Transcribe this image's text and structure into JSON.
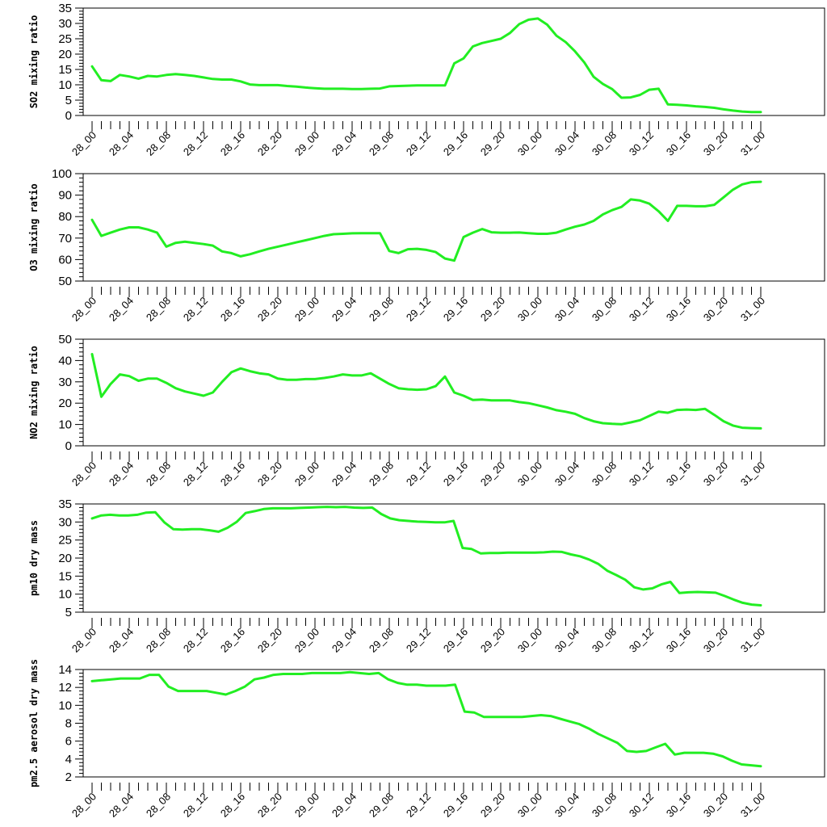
{
  "chart_data": [
    {
      "type": "line",
      "ylabel": "SO2 mixing ratio",
      "ylim": [
        0,
        35
      ],
      "ytick_labels": [
        "0",
        "5",
        "10",
        "15",
        "20",
        "25",
        "30",
        "35"
      ],
      "xtick_labels": [
        "28_00",
        "28_04",
        "28_08",
        "28_12",
        "28_16",
        "28_20",
        "29_00",
        "29_04",
        "29_08",
        "29_12",
        "29_16",
        "29_20",
        "30_00",
        "30_04",
        "30_08",
        "30_12",
        "30_16",
        "30_20",
        "31_00"
      ],
      "series_color": "#22ee22",
      "series": [
        {
          "values": [
            16.0,
            11.5,
            11.2,
            13.2,
            12.7,
            12.0,
            12.9,
            12.7,
            13.2,
            13.5,
            13.2,
            12.9,
            12.4,
            11.9,
            11.7,
            11.7,
            11.1,
            10.1,
            9.9,
            9.9,
            9.9,
            9.6,
            9.4,
            9.1,
            8.9,
            8.7,
            8.7,
            8.7,
            8.6,
            8.6,
            8.7,
            8.8,
            9.5,
            9.6,
            9.7,
            9.8,
            9.8,
            9.8,
            9.8,
            17.0,
            18.6,
            22.5,
            23.6,
            24.3,
            25.0,
            26.9,
            29.8,
            31.2,
            31.6,
            29.6,
            26.0,
            23.9,
            20.9,
            17.3,
            12.6,
            10.3,
            8.6,
            5.8,
            5.9,
            6.7,
            8.4,
            8.7,
            3.6,
            3.5,
            3.3,
            3.0,
            2.8,
            2.5,
            2.0,
            1.6,
            1.3,
            1.1,
            1.1
          ]
        }
      ]
    },
    {
      "type": "line",
      "ylabel": "O3 mixing ratio",
      "ylim": [
        50,
        100
      ],
      "ytick_labels": [
        "50",
        "60",
        "70",
        "80",
        "90",
        "100"
      ],
      "xtick_labels": [
        "28_00",
        "28_04",
        "28_08",
        "28_12",
        "28_16",
        "28_20",
        "29_00",
        "29_04",
        "29_08",
        "29_12",
        "29_16",
        "29_20",
        "30_00",
        "30_04",
        "30_08",
        "30_12",
        "30_16",
        "30_20",
        "31_00"
      ],
      "series_color": "#22ee22",
      "series": [
        {
          "values": [
            78.5,
            71.0,
            72.5,
            74.0,
            75.0,
            75.0,
            74.0,
            72.5,
            66.0,
            67.8,
            68.3,
            67.8,
            67.2,
            66.5,
            63.8,
            63.0,
            61.5,
            62.5,
            63.8,
            65.0,
            66.0,
            67.0,
            68.0,
            69.0,
            70.0,
            71.0,
            71.8,
            72.0,
            72.2,
            72.3,
            72.3,
            72.3,
            64.0,
            63.0,
            64.8,
            65.0,
            64.5,
            63.5,
            60.5,
            59.5,
            70.5,
            72.5,
            74.2,
            72.7,
            72.5,
            72.5,
            72.6,
            72.3,
            72.0,
            72.0,
            72.5,
            74.0,
            75.3,
            76.3,
            78.0,
            81.0,
            83.0,
            84.5,
            88.0,
            87.5,
            86.0,
            82.5,
            78.0,
            85.0,
            85.0,
            84.8,
            84.8,
            85.5,
            89.0,
            92.5,
            95.0,
            96.0,
            96.2
          ]
        }
      ]
    },
    {
      "type": "line",
      "ylabel": "NO2 mixing ratio",
      "ylim": [
        0,
        50
      ],
      "ytick_labels": [
        "0",
        "10",
        "20",
        "30",
        "40",
        "50"
      ],
      "xtick_labels": [
        "28_00",
        "28_04",
        "28_08",
        "28_12",
        "28_16",
        "28_20",
        "29_00",
        "29_04",
        "29_08",
        "29_12",
        "29_16",
        "29_20",
        "30_00",
        "30_04",
        "30_08",
        "30_12",
        "30_16",
        "30_20",
        "31_00"
      ],
      "series_color": "#22ee22",
      "series": [
        {
          "values": [
            43.0,
            23.0,
            29.0,
            33.5,
            32.7,
            30.5,
            31.5,
            31.5,
            29.5,
            27.0,
            25.5,
            24.5,
            23.5,
            25.0,
            30.0,
            34.5,
            36.3,
            35.0,
            34.0,
            33.5,
            31.5,
            31.0,
            31.0,
            31.3,
            31.3,
            31.8,
            32.5,
            33.5,
            33.0,
            33.0,
            34.0,
            31.5,
            29.0,
            27.0,
            26.5,
            26.3,
            26.5,
            28.0,
            32.5,
            25.0,
            23.5,
            21.5,
            21.7,
            21.3,
            21.3,
            21.3,
            20.5,
            20.0,
            19.0,
            18.0,
            16.7,
            16.0,
            15.0,
            13.0,
            11.5,
            10.6,
            10.3,
            10.1,
            11.0,
            12.0,
            14.0,
            16.0,
            15.5,
            16.8,
            17.0,
            16.8,
            17.3,
            14.5,
            11.5,
            9.5,
            8.5,
            8.3,
            8.2
          ]
        }
      ]
    },
    {
      "type": "line",
      "ylabel": "pm10 dry mass",
      "ylim": [
        5,
        35
      ],
      "ytick_labels": [
        "5",
        "10",
        "15",
        "20",
        "25",
        "30",
        "35"
      ],
      "xtick_labels": [
        "28_00",
        "28_04",
        "28_08",
        "28_12",
        "28_16",
        "28_20",
        "29_00",
        "29_04",
        "29_08",
        "29_12",
        "29_16",
        "29_20",
        "30_00",
        "30_04",
        "30_08",
        "30_12",
        "30_16",
        "30_20",
        "31_00"
      ],
      "series_color": "#22ee22",
      "series": [
        {
          "values": [
            31.0,
            31.8,
            32.0,
            31.8,
            31.8,
            32.0,
            32.6,
            32.7,
            29.9,
            28.0,
            27.9,
            28.0,
            28.0,
            27.7,
            27.3,
            28.4,
            30.0,
            32.5,
            33.0,
            33.6,
            33.8,
            33.8,
            33.8,
            33.9,
            34.0,
            34.1,
            34.2,
            34.1,
            34.2,
            34.0,
            33.9,
            34.0,
            32.2,
            31.0,
            30.5,
            30.3,
            30.1,
            30.0,
            29.9,
            29.9,
            30.3,
            22.8,
            22.5,
            21.3,
            21.4,
            21.4,
            21.5,
            21.5,
            21.5,
            21.5,
            21.6,
            21.8,
            21.7,
            21.0,
            20.5,
            19.6,
            18.4,
            16.5,
            15.3,
            14.0,
            11.9,
            11.3,
            11.6,
            12.7,
            13.4,
            10.3,
            10.5,
            10.6,
            10.5,
            10.4,
            9.5,
            8.5,
            7.6,
            7.1,
            6.9
          ]
        }
      ]
    },
    {
      "type": "line",
      "ylabel": "pm2.5 aerosol dry mass",
      "ylim": [
        2,
        14
      ],
      "ytick_labels": [
        "2",
        "4",
        "6",
        "8",
        "10",
        "12",
        "14"
      ],
      "xtick_labels": [
        "28_00",
        "28_04",
        "28_08",
        "28_12",
        "28_16",
        "28_20",
        "29_00",
        "29_04",
        "29_08",
        "29_12",
        "29_16",
        "29_20",
        "30_00",
        "30_04",
        "30_08",
        "30_12",
        "30_16",
        "30_20",
        "31_00"
      ],
      "series_color": "#22ee22",
      "series": [
        {
          "values": [
            12.7,
            12.8,
            12.9,
            13.0,
            13.0,
            13.0,
            13.4,
            13.4,
            12.1,
            11.6,
            11.6,
            11.6,
            11.6,
            11.4,
            11.2,
            11.6,
            12.1,
            12.9,
            13.1,
            13.4,
            13.5,
            13.5,
            13.5,
            13.6,
            13.6,
            13.6,
            13.6,
            13.7,
            13.6,
            13.5,
            13.6,
            12.9,
            12.5,
            12.3,
            12.3,
            12.2,
            12.2,
            12.2,
            12.3,
            9.3,
            9.2,
            8.7,
            8.7,
            8.7,
            8.7,
            8.7,
            8.8,
            8.9,
            8.8,
            8.5,
            8.2,
            7.9,
            7.4,
            6.8,
            6.3,
            5.8,
            4.9,
            4.8,
            4.9,
            5.3,
            5.7,
            4.5,
            4.7,
            4.7,
            4.7,
            4.6,
            4.3,
            3.8,
            3.4,
            3.3,
            3.2
          ]
        }
      ]
    }
  ]
}
